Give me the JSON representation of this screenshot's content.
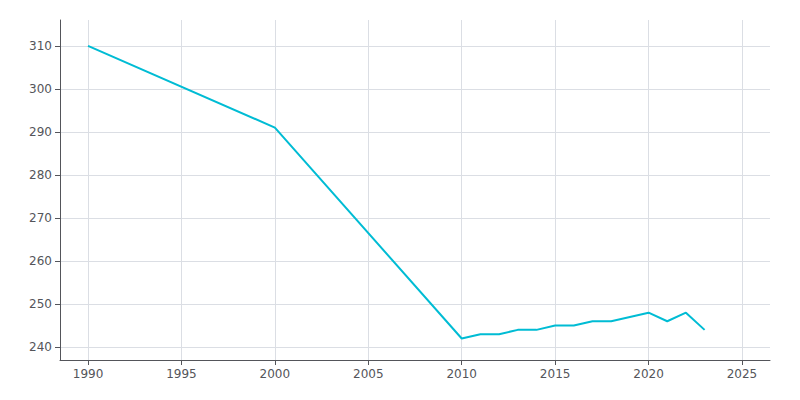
{
  "chart_data": {
    "type": "line",
    "x": [
      1990,
      2000,
      2010,
      2011,
      2012,
      2013,
      2014,
      2015,
      2016,
      2017,
      2018,
      2019,
      2020,
      2021,
      2022,
      2023
    ],
    "values": [
      310,
      291,
      242,
      243,
      243,
      244,
      244,
      245,
      245,
      246,
      246,
      247,
      248,
      246,
      248,
      244
    ],
    "color": "#00BCD4",
    "xlim": [
      1988.5,
      2026.5
    ],
    "ylim": [
      237,
      316
    ],
    "xticks": [
      1990,
      1995,
      2000,
      2005,
      2010,
      2015,
      2020,
      2025
    ],
    "yticks": [
      240,
      250,
      260,
      270,
      280,
      290,
      300,
      310
    ],
    "grid": true
  }
}
